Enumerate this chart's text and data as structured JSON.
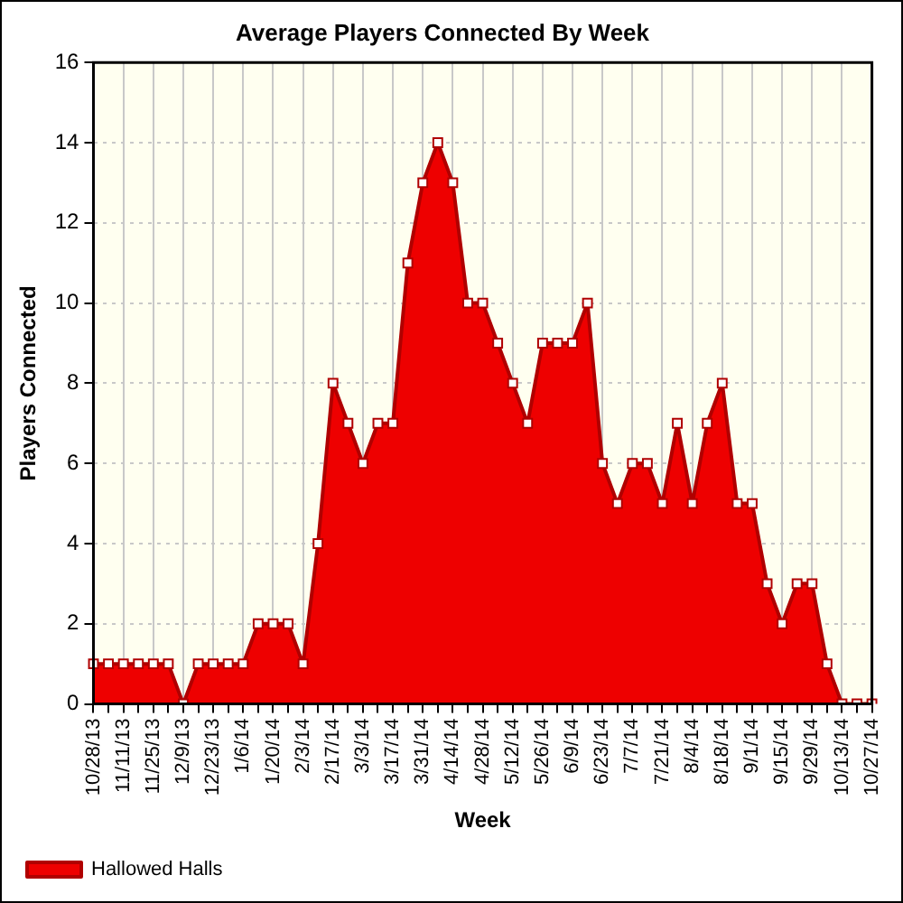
{
  "chart_data": {
    "type": "area",
    "title": "Average Players Connected By Week",
    "xlabel": "Week",
    "ylabel": "Players Connected",
    "categories": [
      "10/28/13",
      null,
      "11/11/13",
      null,
      "11/25/13",
      null,
      "12/9/13",
      null,
      "12/23/13",
      null,
      "1/6/14",
      null,
      "1/20/14",
      null,
      "2/3/14",
      null,
      "2/17/14",
      null,
      "3/3/14",
      null,
      "3/17/14",
      null,
      "3/31/14",
      null,
      "4/14/14",
      null,
      "4/28/14",
      null,
      "5/12/14",
      null,
      "5/26/14",
      null,
      "6/9/14",
      null,
      "6/23/14",
      null,
      "7/7/14",
      null,
      "7/21/14",
      null,
      "8/4/14",
      null,
      "8/18/14",
      null,
      "9/1/14",
      null,
      "9/15/14",
      null,
      "9/29/14",
      null,
      "10/13/14",
      null,
      "10/27/14"
    ],
    "series": [
      {
        "name": "Hallowed Halls",
        "color": "#ee0000",
        "values": [
          1,
          1,
          1,
          1,
          1,
          1,
          0,
          1,
          1,
          1,
          1,
          2,
          2,
          2,
          1,
          4,
          8,
          7,
          6,
          7,
          7,
          11,
          13,
          14,
          13,
          10,
          10,
          9,
          8,
          7,
          9,
          9,
          9,
          10,
          6,
          5,
          6,
          6,
          5,
          7,
          5,
          7,
          8,
          5,
          5,
          3,
          2,
          3,
          3,
          1,
          0,
          0,
          0
        ]
      }
    ],
    "ylim": [
      0,
      16
    ],
    "yticks": [
      0,
      2,
      4,
      6,
      8,
      10,
      12,
      14,
      16
    ],
    "grid": true,
    "legend": "bottom left",
    "marker": "square",
    "line_style": "solid"
  }
}
